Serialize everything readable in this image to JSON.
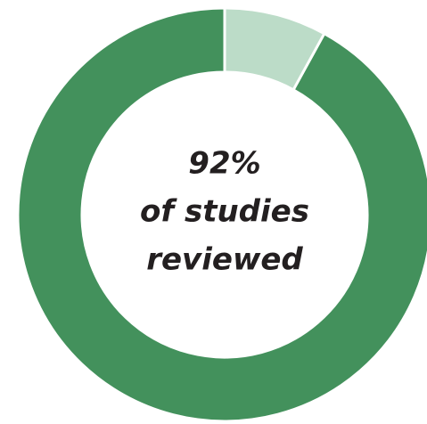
{
  "chart_data": {
    "type": "donut",
    "values": [
      92,
      8
    ],
    "value_labels": [
      "92%",
      null
    ],
    "colors": [
      "#43915c",
      "#bcdcc8"
    ],
    "annotation": [
      "of studies",
      "reviewed"
    ]
  }
}
